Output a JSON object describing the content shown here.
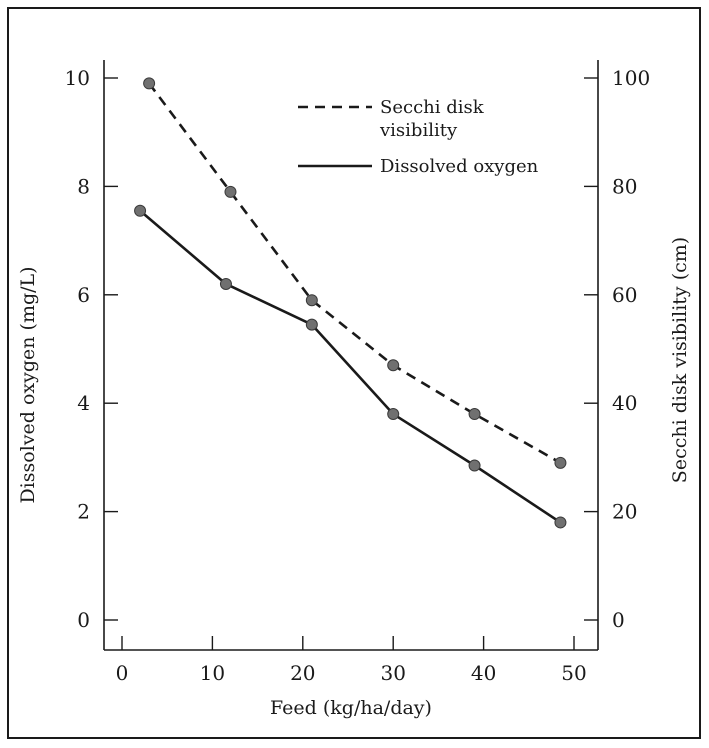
{
  "chart_data": {
    "type": "line",
    "xlabel": "Feed (kg/ha/day)",
    "ylabel_left": "Dissolved oxygen (mg/L)",
    "ylabel_right": "Secchi disk visibility (cm)",
    "xlim": [
      0,
      50
    ],
    "ylim_left": [
      0,
      10
    ],
    "ylim_right": [
      0,
      100
    ],
    "x_ticks": [
      0,
      10,
      20,
      30,
      40,
      50
    ],
    "y_ticks_left": [
      0,
      2,
      4,
      6,
      8,
      10
    ],
    "y_ticks_right": [
      0,
      20,
      40,
      60,
      80,
      100
    ],
    "grid": false,
    "legend_position": "top-right",
    "series": [
      {
        "name": "Secchi disk visibility",
        "axis": "right",
        "style": "dashed",
        "x": [
          3,
          12,
          21,
          30,
          39,
          48.5
        ],
        "y": [
          99,
          79,
          59,
          47,
          38,
          29
        ]
      },
      {
        "name": "Dissolved oxygen",
        "axis": "left",
        "style": "solid",
        "x": [
          2,
          11.5,
          21,
          30,
          39,
          48.5
        ],
        "y": [
          7.55,
          6.2,
          5.45,
          3.8,
          2.85,
          1.8
        ]
      }
    ],
    "legend": {
      "secchi_line1": "Secchi disk",
      "secchi_line2": "visibility",
      "oxygen": "Dissolved oxygen"
    }
  },
  "colors": {
    "line": "#1a1a1a",
    "marker": "#707070",
    "background": "#ffffff"
  }
}
